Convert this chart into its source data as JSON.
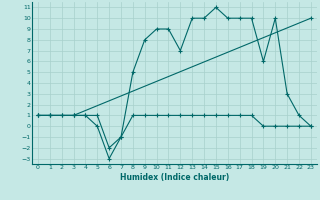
{
  "xlabel": "Humidex (Indice chaleur)",
  "xlim": [
    -0.5,
    23.5
  ],
  "ylim": [
    -3.5,
    11.5
  ],
  "yticks": [
    -3,
    -2,
    -1,
    0,
    1,
    2,
    3,
    4,
    5,
    6,
    7,
    8,
    9,
    10,
    11
  ],
  "xticks": [
    0,
    1,
    2,
    3,
    4,
    5,
    6,
    7,
    8,
    9,
    10,
    11,
    12,
    13,
    14,
    15,
    16,
    17,
    18,
    19,
    20,
    21,
    22,
    23
  ],
  "bg_color": "#c5e8e5",
  "line_color": "#006868",
  "grid_color": "#a8d0cc",
  "line1_x": [
    0,
    1,
    2,
    3,
    4,
    5,
    6,
    7,
    8,
    9,
    10,
    11,
    12,
    13,
    14,
    15,
    16,
    17,
    18,
    19,
    20,
    21,
    22,
    23
  ],
  "line1_y": [
    1,
    1,
    1,
    1,
    1,
    0,
    -3,
    -1,
    5,
    8,
    9,
    9,
    7,
    10,
    10,
    11,
    10,
    10,
    10,
    6,
    10,
    3,
    1,
    0
  ],
  "line2_x": [
    0,
    1,
    2,
    3,
    4,
    5,
    6,
    7,
    8,
    9,
    10,
    11,
    12,
    13,
    14,
    15,
    16,
    17,
    18,
    19,
    20,
    21,
    22,
    23
  ],
  "line2_y": [
    1,
    1,
    1,
    1,
    1,
    1,
    -2,
    -1,
    1,
    1,
    1,
    1,
    1,
    1,
    1,
    1,
    1,
    1,
    1,
    0,
    0,
    0,
    0,
    0
  ],
  "line3_x": [
    0,
    1,
    3,
    23
  ],
  "line3_y": [
    1,
    1,
    1,
    10
  ]
}
